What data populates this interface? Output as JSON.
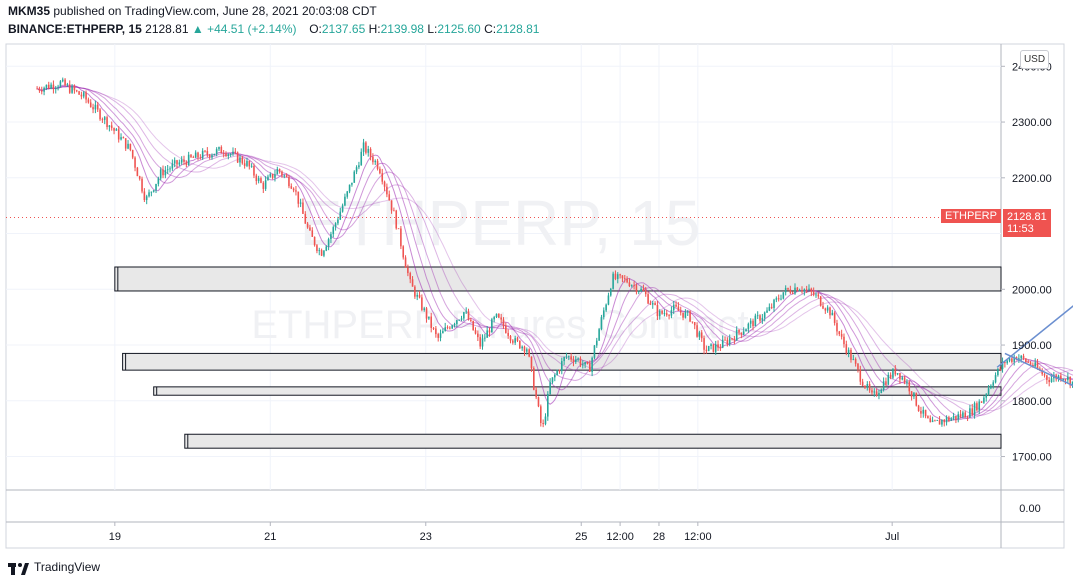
{
  "header": {
    "publisher": "MKM35",
    "published_text": "published on TradingView.com, June 28, 2021 20:03:08 CDT",
    "symbol": "BINANCE:ETHPERP, 15",
    "last": "2128.81",
    "change": "▲ +44.51 (+2.14%)",
    "o_label": "O:",
    "o_value": "2137.65",
    "h_label": "H:",
    "h_value": "2139.98",
    "l_label": "L:",
    "l_value": "2125.60",
    "c_label": "C:",
    "c_value": "2128.81"
  },
  "watermark": {
    "symbol": "ETHPERP, 15",
    "subtitle": "ETHPERP Futures Contract"
  },
  "currency_button": "USD",
  "price_marker": {
    "label": "ETHPERP",
    "price": "2128.81",
    "countdown": "11:53"
  },
  "footer": {
    "brand": "TradingView"
  },
  "colors": {
    "up": "#26a69a",
    "down": "#ef5350",
    "ma": "#9c27b0",
    "arrow": "#6b8fd0",
    "zone_fill": "#e8e8e8"
  },
  "chart_data": {
    "type": "candlestick",
    "title": "",
    "ylim": [
      1640,
      2440
    ],
    "y_ticks": [
      2400,
      2300,
      2200,
      2100,
      2000,
      1900,
      1800,
      1700
    ],
    "y_tick_labels": [
      "2400.00",
      "2300.00",
      "2200.00",
      "2000.00",
      "1900.00",
      "1800.00",
      "1700.00"
    ],
    "volume_axis_label": "0.00",
    "x_labels": [
      "19",
      "21",
      "23",
      "25",
      "12:00",
      "28",
      "12:00",
      "Jul"
    ],
    "x_tick_days": [
      1,
      3,
      5,
      7,
      7.5,
      8,
      8.5,
      11
    ],
    "xlim_days": [
      -0.4,
      12.4
    ],
    "current_price": 2128.81,
    "price_path": [
      [
        0.0,
        2360
      ],
      [
        0.3,
        2370
      ],
      [
        0.6,
        2345
      ],
      [
        0.9,
        2300
      ],
      [
        1.2,
        2250
      ],
      [
        1.4,
        2160
      ],
      [
        1.6,
        2210
      ],
      [
        1.8,
        2225
      ],
      [
        2.1,
        2240
      ],
      [
        2.4,
        2250
      ],
      [
        2.7,
        2225
      ],
      [
        2.9,
        2185
      ],
      [
        3.1,
        2215
      ],
      [
        3.3,
        2185
      ],
      [
        3.5,
        2100
      ],
      [
        3.65,
        2065
      ],
      [
        3.8,
        2105
      ],
      [
        4.0,
        2175
      ],
      [
        4.2,
        2255
      ],
      [
        4.4,
        2220
      ],
      [
        4.6,
        2130
      ],
      [
        4.8,
        2010
      ],
      [
        5.0,
        1955
      ],
      [
        5.15,
        1910
      ],
      [
        5.3,
        1935
      ],
      [
        5.5,
        1960
      ],
      [
        5.7,
        1900
      ],
      [
        5.9,
        1950
      ],
      [
        6.0,
        1935
      ],
      [
        6.15,
        1905
      ],
      [
        6.3,
        1895
      ],
      [
        6.4,
        1820
      ],
      [
        6.5,
        1745
      ],
      [
        6.6,
        1830
      ],
      [
        6.8,
        1880
      ],
      [
        6.95,
        1875
      ],
      [
        7.1,
        1855
      ],
      [
        7.25,
        1940
      ],
      [
        7.4,
        2020
      ],
      [
        7.6,
        2015
      ],
      [
        7.8,
        1995
      ],
      [
        8.0,
        1955
      ],
      [
        8.2,
        1965
      ],
      [
        8.4,
        1950
      ],
      [
        8.6,
        1890
      ],
      [
        8.8,
        1900
      ],
      [
        9.0,
        1920
      ],
      [
        9.2,
        1940
      ],
      [
        9.4,
        1960
      ],
      [
        9.6,
        1995
      ],
      [
        9.8,
        2005
      ],
      [
        10.0,
        1990
      ],
      [
        10.2,
        1960
      ],
      [
        10.35,
        1910
      ],
      [
        10.5,
        1870
      ],
      [
        10.6,
        1840
      ],
      [
        10.75,
        1805
      ],
      [
        10.9,
        1835
      ],
      [
        11.05,
        1855
      ],
      [
        11.2,
        1830
      ],
      [
        11.35,
        1785
      ],
      [
        11.5,
        1755
      ],
      [
        11.65,
        1765
      ],
      [
        11.8,
        1770
      ],
      [
        12.0,
        1780
      ],
      [
        12.15,
        1800
      ],
      [
        12.3,
        1840
      ],
      [
        12.45,
        1870
      ],
      [
        12.6,
        1880
      ],
      [
        12.8,
        1865
      ],
      [
        13.0,
        1840
      ],
      [
        13.2,
        1845
      ],
      [
        13.4,
        1825
      ],
      [
        13.6,
        1830
      ],
      [
        13.75,
        1865
      ],
      [
        13.85,
        1950
      ],
      [
        14.0,
        1980
      ],
      [
        14.2,
        1985
      ],
      [
        14.4,
        1990
      ],
      [
        14.55,
        2025
      ],
      [
        14.7,
        2065
      ],
      [
        14.85,
        2080
      ],
      [
        15.0,
        2100
      ],
      [
        15.15,
        2135
      ],
      [
        15.3,
        2130
      ],
      [
        15.45,
        2115
      ],
      [
        15.6,
        2095
      ],
      [
        15.75,
        2128.81
      ]
    ],
    "zones": [
      {
        "low": 1997,
        "high": 2040,
        "from_day": 1.0
      },
      {
        "low": 1855,
        "high": 1885,
        "from_day": 1.1
      },
      {
        "low": 1810,
        "high": 1825,
        "from_day": 1.5
      },
      {
        "low": 1715,
        "high": 1740,
        "from_day": 1.9
      }
    ],
    "arrows": [
      {
        "from": [
          12.35,
          1860
        ],
        "to": [
          13.55,
          1995
        ]
      },
      {
        "from": [
          12.45,
          1885
        ],
        "to": [
          14.65,
          1740
        ]
      }
    ]
  }
}
